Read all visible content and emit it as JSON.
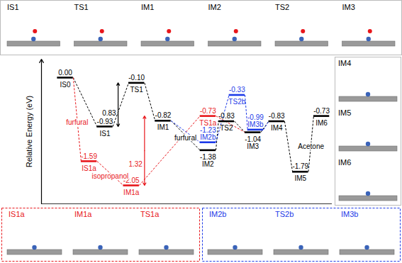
{
  "chart_data": {
    "type": "energy_profile",
    "y_label": "Relative Energy (eV)",
    "xlim": [
      0,
      11
    ],
    "ylim": [
      -2.4,
      0.35
    ],
    "tick_labels": false,
    "data_labels": true,
    "series": [
      {
        "color": "#000000",
        "x": [
          0.9,
          2.4,
          3.6,
          4.6,
          6.3,
          7.0,
          8.0,
          8.9,
          9.8,
          10.6
        ],
        "values": [
          0,
          -0.93,
          -0.1,
          -0.82,
          -1.38,
          -0.83,
          -1.04,
          -0.83,
          -1.79,
          -0.73
        ],
        "value_labels": [
          "0.00",
          "-0.93",
          "-0.10",
          "-0.82",
          "-1.38",
          "-0.83",
          "-1.04",
          "-0.83",
          "-1.79",
          "-0.73"
        ],
        "labels": [
          "IS0",
          "IS1",
          "TS1",
          "IM1",
          "IM2",
          "TS2",
          "IM3",
          "IM4",
          "IM5",
          "IM6"
        ],
        "connections": [
          [
            "IS0",
            "IS1"
          ],
          [
            "IS1",
            "TS1"
          ],
          [
            "TS1",
            "IM1"
          ],
          [
            "IM1",
            "IM2"
          ],
          [
            "IM2",
            "TS2"
          ],
          [
            "TS2",
            "IM3"
          ],
          [
            "IM3",
            "IM4"
          ],
          [
            "IM4",
            "IM5"
          ],
          [
            "IM5",
            "IM6"
          ]
        ]
      },
      {
        "color": "#e8161b",
        "x": [
          1.8,
          3.4,
          6.3
        ],
        "values": [
          -1.59,
          -2.05,
          -0.73
        ],
        "value_labels": [
          "-1.59",
          "-2.05",
          "-0.73"
        ],
        "labels": [
          "IS1a",
          "IM1a",
          "TS1a"
        ],
        "connections": [
          [
            "IS0",
            "IS1a"
          ],
          [
            "IS1a",
            "IM1a"
          ],
          [
            "IM1a",
            "TS1a"
          ],
          [
            "TS1a",
            "IM3"
          ]
        ]
      },
      {
        "color": "#1c3ae8",
        "x": [
          6.3,
          7.4,
          8.1
        ],
        "values": [
          -1.23,
          -0.33,
          -0.99
        ],
        "value_labels": [
          "-1.23",
          "-0.33",
          "-0.99"
        ],
        "labels": [
          "IM2b",
          "TS2b",
          "IM3b"
        ],
        "connections": [
          [
            "IM1",
            "IM2b"
          ],
          [
            "IM2b",
            "TS2b"
          ],
          [
            "TS2b",
            "IM3b"
          ],
          [
            "IM3b",
            "IM4"
          ]
        ]
      }
    ],
    "barriers": [
      {
        "value": 0.83,
        "label": "0.83",
        "from": "IS1",
        "to": "TS1",
        "color": "#000000"
      },
      {
        "value": 1.32,
        "label": "1.32",
        "from": "IM1a",
        "to": "TS1a",
        "color": "#e8161b"
      }
    ],
    "annotations": [
      {
        "text": "furfural",
        "color": "#e8161b",
        "between": [
          "IS0",
          "IS1a"
        ]
      },
      {
        "text": "isopropanol",
        "color": "#e8161b",
        "between": [
          "IS1a",
          "IM1a"
        ]
      },
      {
        "text": "furfural",
        "color": "#000000",
        "between": [
          "IM1",
          "IM2"
        ]
      },
      {
        "text": "Acetone",
        "color": "#000000",
        "between": [
          "IM5",
          "IM6"
        ]
      }
    ]
  },
  "structure_panels": {
    "top": {
      "labels": [
        "IS1",
        "TS1",
        "IM1",
        "IM2",
        "TS2",
        "IM3"
      ]
    },
    "right": {
      "labels": [
        "IM4",
        "IM5",
        "IM6"
      ]
    },
    "bottom": [
      {
        "labels": [
          "IS1a",
          "IM1a",
          "TS1a"
        ],
        "color": "#e8161b"
      },
      {
        "labels": [
          "IM2b",
          "TS2b",
          "IM3b"
        ],
        "color": "#1c3ae8"
      }
    ]
  }
}
